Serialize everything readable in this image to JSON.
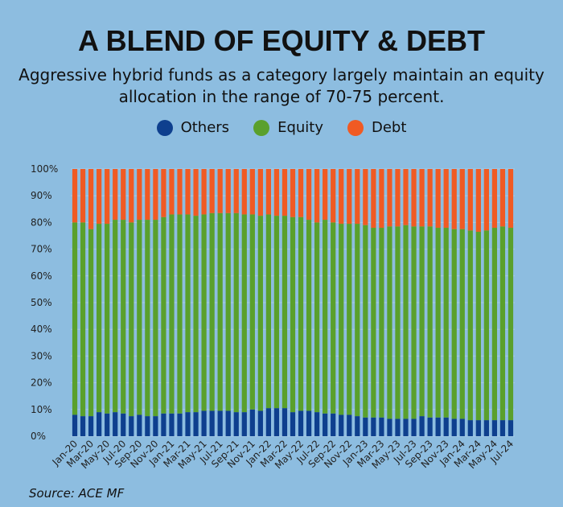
{
  "title": "A BLEND OF EQUITY & DEBT",
  "subtitle": "Aggressive hybrid funds as a category largely maintain an equity allocation in the range of 70-75 percent.",
  "source": "Source: ACE MF",
  "legend": [
    {
      "label": "Others",
      "color": "#0e3f8e"
    },
    {
      "label": "Equity",
      "color": "#5aa02c"
    },
    {
      "label": "Debt",
      "color": "#f05a23"
    }
  ],
  "chart_data": {
    "type": "bar",
    "stacked": true,
    "y_tick_labels": [
      "0%",
      "10%",
      "20%",
      "30%",
      "40%",
      "50%",
      "60%",
      "70%",
      "80%",
      "90%",
      "100%"
    ],
    "ylim": [
      0,
      100
    ],
    "grid": true,
    "x_tick_labels": [
      "Jan-20",
      "Mar-20",
      "May-20",
      "Jul-20",
      "Sep-20",
      "Nov-20",
      "Jan-21",
      "Mar-21",
      "May-21",
      "Jul-21",
      "Sep-21",
      "Nov-21",
      "Jan-22",
      "Mar-22",
      "May-22",
      "Jul-22",
      "Sep-22",
      "Nov-22",
      "Jan-23",
      "Mar-23",
      "May-23",
      "Jul-23",
      "Sep-23",
      "Nov-23",
      "Jan-24",
      "Mar-24",
      "May-24",
      "Jul-24"
    ],
    "categories": [
      "Jan-20",
      "Feb-20",
      "Mar-20",
      "Apr-20",
      "May-20",
      "Jun-20",
      "Jul-20",
      "Aug-20",
      "Sep-20",
      "Oct-20",
      "Nov-20",
      "Dec-20",
      "Jan-21",
      "Feb-21",
      "Mar-21",
      "Apr-21",
      "May-21",
      "Jun-21",
      "Jul-21",
      "Aug-21",
      "Sep-21",
      "Oct-21",
      "Nov-21",
      "Dec-21",
      "Jan-22",
      "Feb-22",
      "Mar-22",
      "Apr-22",
      "May-22",
      "Jun-22",
      "Jul-22",
      "Aug-22",
      "Sep-22",
      "Oct-22",
      "Nov-22",
      "Dec-22",
      "Jan-23",
      "Feb-23",
      "Mar-23",
      "Apr-23",
      "May-23",
      "Jun-23",
      "Jul-23",
      "Aug-23",
      "Sep-23",
      "Oct-23",
      "Nov-23",
      "Dec-23",
      "Jan-24",
      "Feb-24",
      "Mar-24",
      "Apr-24",
      "May-24",
      "Jun-24",
      "Jul-24"
    ],
    "series": [
      {
        "name": "Others",
        "values": [
          8,
          7.5,
          7.5,
          9,
          8.5,
          9,
          8.5,
          7.5,
          8,
          7.5,
          7.5,
          8.5,
          8.5,
          8.5,
          9,
          9,
          9.5,
          9.5,
          9.5,
          9.5,
          9,
          9,
          10,
          9.5,
          10.5,
          10.5,
          10.5,
          9,
          9.5,
          9.5,
          9,
          8.5,
          8.5,
          8,
          8,
          7.5,
          7,
          7,
          7,
          6.5,
          6.5,
          6.5,
          6.5,
          7.5,
          7,
          7,
          7,
          6.5,
          6.5,
          6,
          6,
          6,
          6,
          6,
          6
        ]
      },
      {
        "name": "Equity",
        "values": [
          72,
          72.5,
          70,
          70.5,
          71,
          72,
          72.5,
          72.5,
          73,
          73.5,
          73.5,
          73.5,
          74.5,
          74.5,
          74,
          73.5,
          73.5,
          74,
          74,
          74,
          74.5,
          74,
          73,
          73,
          72.5,
          72,
          72,
          73,
          72.5,
          71.5,
          71,
          72.5,
          71.5,
          71.5,
          71.5,
          72,
          72,
          71,
          71,
          72,
          72,
          72.5,
          72,
          71,
          71.5,
          71,
          71,
          71,
          71,
          71,
          70.5,
          71,
          72,
          72.5,
          72
        ]
      },
      {
        "name": "Debt",
        "values": [
          20,
          20,
          22.5,
          20.5,
          20.5,
          19,
          19,
          20,
          19,
          19,
          19,
          18,
          17,
          17,
          17,
          17.5,
          17,
          16.5,
          16.5,
          16.5,
          16.5,
          17,
          17,
          17.5,
          17,
          17.5,
          17.5,
          18,
          18,
          19,
          20,
          19,
          20,
          20.5,
          20.5,
          20.5,
          21,
          22,
          22,
          21.5,
          21.5,
          21,
          21.5,
          21.5,
          21.5,
          22,
          22,
          22.5,
          22.5,
          23,
          23.5,
          23,
          22,
          21.5,
          22
        ]
      }
    ]
  }
}
